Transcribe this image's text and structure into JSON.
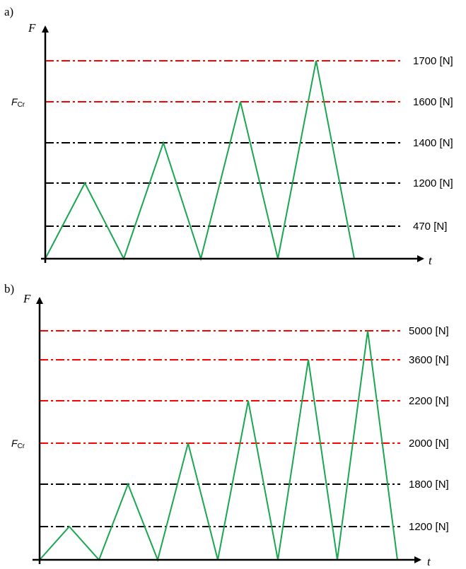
{
  "panels": [
    {
      "label": "a)",
      "y_axis_label": "F",
      "x_axis_label": "t",
      "critical_label": {
        "main": "F",
        "sub": "Cr"
      },
      "levels": [
        {
          "value": 470,
          "text": "470 [N]",
          "color": "#000000"
        },
        {
          "value": 1200,
          "text": "1200 [N]",
          "color": "#000000"
        },
        {
          "value": 1400,
          "text": "1400 [N]",
          "color": "#000000"
        },
        {
          "value": 1600,
          "text": "1600 [N]",
          "color": "#ff0000"
        },
        {
          "value": 1700,
          "text": "1700 [N]",
          "color": "#ff0000"
        }
      ],
      "peaks": [
        1200,
        1400,
        1600,
        1700
      ],
      "critical_value": 1600
    },
    {
      "label": "b)",
      "y_axis_label": "F",
      "x_axis_label": "t",
      "critical_label": {
        "main": "F",
        "sub": "Cr"
      },
      "levels": [
        {
          "value": 1200,
          "text": "1200 [N]",
          "color": "#000000"
        },
        {
          "value": 1800,
          "text": "1800 [N]",
          "color": "#000000"
        },
        {
          "value": 2000,
          "text": "2000 [N]",
          "color": "#ff0000"
        },
        {
          "value": 2200,
          "text": "2200 [N]",
          "color": "#ff0000"
        },
        {
          "value": 3600,
          "text": "3600 [N]",
          "color": "#ff0000"
        },
        {
          "value": 5000,
          "text": "5000 [N]",
          "color": "#ff0000"
        }
      ],
      "peaks": [
        1200,
        1800,
        2000,
        2200,
        3600,
        5000
      ],
      "critical_value": 2000
    }
  ],
  "colors": {
    "load_line": "#1aa650",
    "axis": "#000000",
    "critical_level": "#ff0000",
    "normal_level": "#000000"
  }
}
